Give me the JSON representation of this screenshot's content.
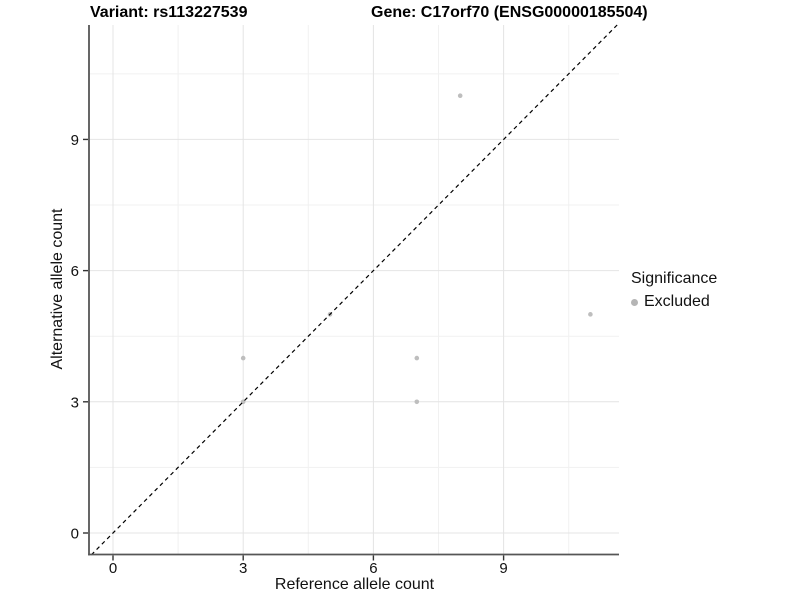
{
  "header": {
    "variant_title": "Variant: rs113227539",
    "gene_title": "Gene: C17orf70 (ENSG00000185504)"
  },
  "legend": {
    "title": "Significance",
    "items": [
      {
        "label": "Excluded",
        "color": "#b5b5b5"
      }
    ]
  },
  "chart_data": {
    "type": "scatter",
    "title": "Variant: rs113227539",
    "subtitle": "Gene: C17orf70 (ENSG00000185504)",
    "xlabel": "Reference allele count",
    "ylabel": "Alternative allele count",
    "x_ticks": [
      0,
      3,
      6,
      9
    ],
    "y_ticks": [
      0,
      3,
      6,
      9
    ],
    "x_minor_ticks": [
      1.5,
      4.5,
      7.5,
      10.5
    ],
    "y_minor_ticks": [
      1.5,
      4.5,
      7.5,
      10.5
    ],
    "xlim": [
      -0.55,
      11.65
    ],
    "ylim": [
      -0.5,
      11.62
    ],
    "grid": "major+minor",
    "legend_position": "right",
    "series": [
      {
        "name": "Excluded",
        "color": "#bebebe",
        "points": [
          [
            3,
            3
          ],
          [
            3,
            4
          ],
          [
            5,
            5
          ],
          [
            7,
            3
          ],
          [
            7,
            4
          ],
          [
            8,
            10
          ],
          [
            11,
            5
          ]
        ]
      }
    ],
    "reference_line": {
      "type": "identity y=x",
      "line_style": "dashed",
      "color": "#000000"
    },
    "colors": {
      "grid_major": "#e4e4e4",
      "grid_minor": "#f1f1f1",
      "axis_line": "#565656",
      "tick": "#333333",
      "text": "#111111",
      "background": "#ffffff"
    }
  }
}
